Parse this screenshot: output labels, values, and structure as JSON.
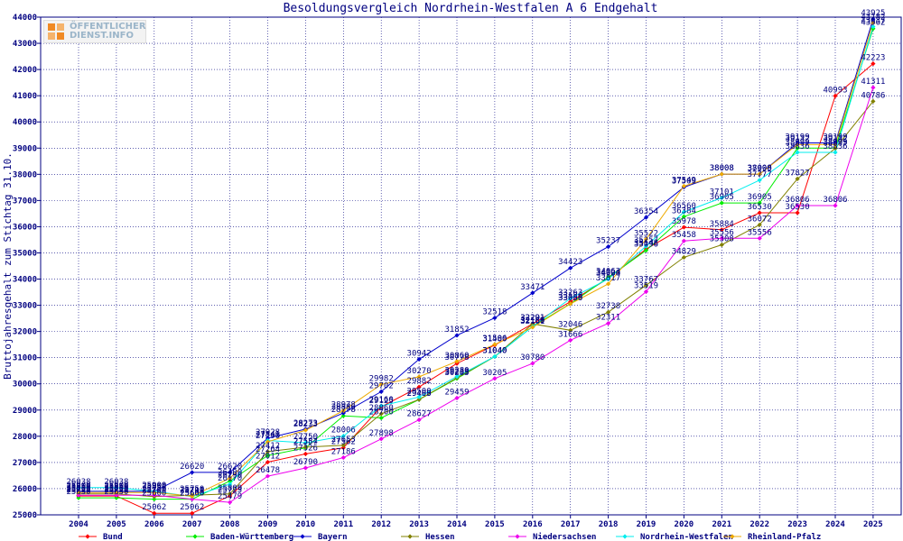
{
  "chart_data": {
    "type": "line",
    "title": "Besoldungsvergleich Nordrhein-Westfalen A 6 Endgehalt",
    "ylabel": "Bruttojahresgehalt zum Stichtag 31.10.",
    "xlabel": "",
    "ylim": [
      25000,
      44000
    ],
    "y_ticks": [
      25000,
      26000,
      27000,
      28000,
      29000,
      30000,
      31000,
      32000,
      33000,
      34000,
      35000,
      36000,
      37000,
      38000,
      39000,
      40000,
      41000,
      42000,
      43000,
      44000
    ],
    "categories": [
      "2004",
      "2005",
      "2006",
      "2007",
      "2008",
      "2009",
      "2010",
      "2011",
      "2012",
      "2013",
      "2014",
      "2015",
      "2016",
      "2017",
      "2018",
      "2019",
      "2020",
      "2021",
      "2022",
      "2023",
      "2024",
      "2025"
    ],
    "grid": true,
    "legend_position": "bottom",
    "series": [
      {
        "name": "Bund",
        "color": "#ff0000",
        "values": [
          25721,
          25721,
          25062,
          25062,
          25723,
          27012,
          27326,
          27562,
          29125,
          29882,
          30778,
          31480,
          32291,
          33136,
          34024,
          35148,
          35978,
          35884,
          36530,
          36530,
          40993,
          42223
        ]
      },
      {
        "name": "Baden-Württemberg",
        "color": "#00ee00",
        "values": [
          25650,
          25650,
          25600,
          25600,
          26290,
          27264,
          27557,
          28778,
          28700,
          29400,
          30205,
          31040,
          32189,
          33060,
          34063,
          35096,
          36384,
          36905,
          36905,
          38999,
          38999,
          43562
        ]
      },
      {
        "name": "Bayern",
        "color": "#0000cc",
        "values": [
          25900,
          25900,
          25900,
          26620,
          26620,
          27928,
          28273,
          28886,
          29702,
          30942,
          31852,
          32518,
          33471,
          34423,
          35237,
          36354,
          37509,
          38008,
          37999,
          39199,
          39199,
          43925
        ]
      },
      {
        "name": "Hessen",
        "color": "#808000",
        "values": [
          25800,
          25800,
          25700,
          25750,
          25800,
          27412,
          27584,
          27653,
          28860,
          29403,
          30233,
          31040,
          32291,
          32046,
          32738,
          33767,
          34829,
          35308,
          36072,
          37827,
          38993,
          40786
        ]
      },
      {
        "name": "Niedersachsen",
        "color": "#ee00ee",
        "values": [
          25750,
          25750,
          25750,
          25600,
          25479,
          26478,
          26790,
          27186,
          27898,
          28627,
          29459,
          30205,
          30780,
          31666,
          32311,
          33519,
          35458,
          35556,
          35556,
          36806,
          36806,
          41311
        ]
      },
      {
        "name": "Nordrhein-Westfalen",
        "color": "#00eeee",
        "values": [
          26038,
          26038,
          25900,
          25700,
          26170,
          27841,
          27750,
          28006,
          29160,
          29500,
          30280,
          31040,
          32186,
          33263,
          34000,
          35257,
          36560,
          37101,
          37777,
          38836,
          38836,
          43637
        ]
      },
      {
        "name": "Rheinland-Pfalz",
        "color": "#eeaa00",
        "values": [
          25850,
          25850,
          25850,
          25711,
          26400,
          27790,
          28233,
          28978,
          29982,
          30270,
          30860,
          31506,
          32161,
          33056,
          33817,
          35522,
          37549,
          38008,
          38008,
          39132,
          39132,
          43782
        ]
      }
    ]
  },
  "logo": {
    "line1": "ÖFFENTLICHER",
    "line2": "DIENST.INFO"
  }
}
